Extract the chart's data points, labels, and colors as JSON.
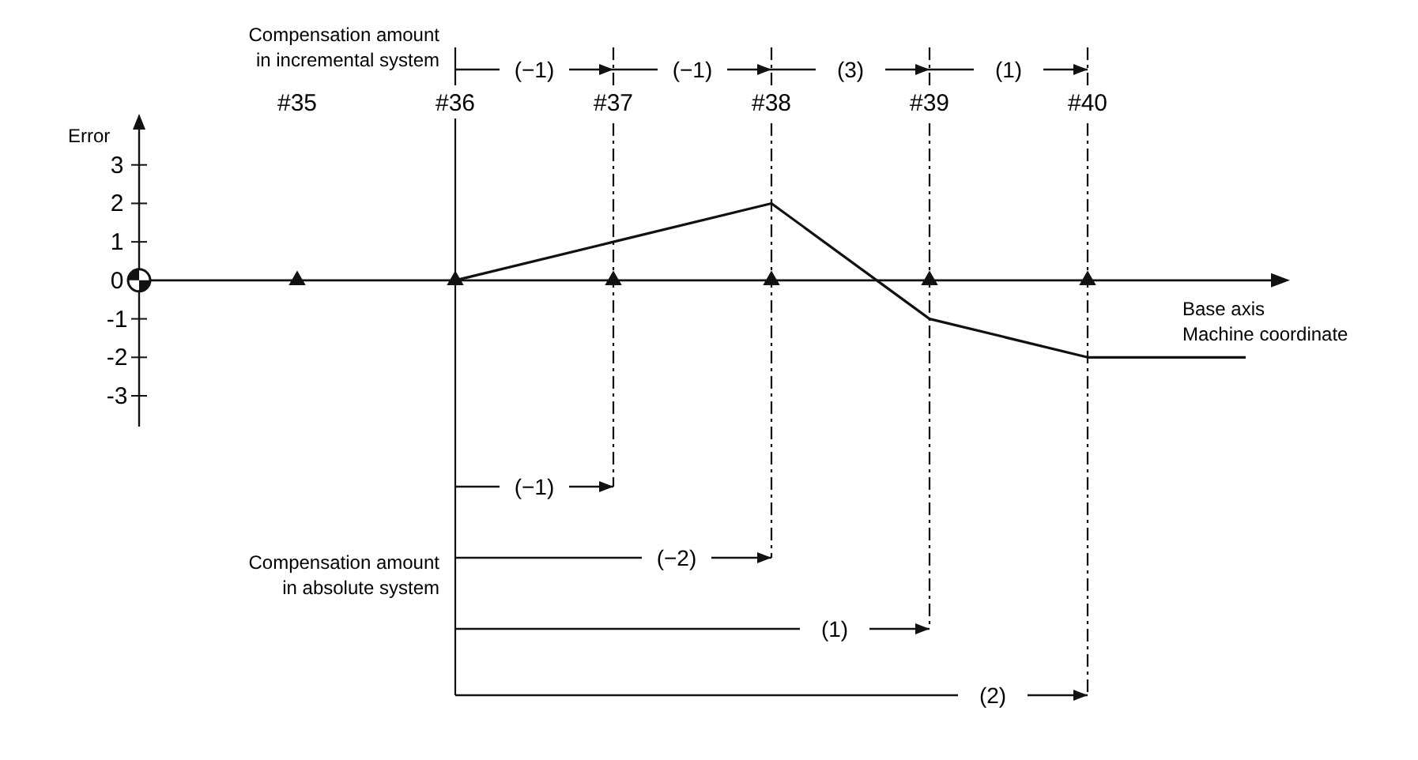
{
  "chart_data": {
    "type": "line",
    "ylabel": "Error",
    "categories": [
      null,
      "#35",
      "#36",
      "#37",
      "#38",
      "#39",
      "#40",
      null
    ],
    "series": [
      {
        "color": "#111111",
        "values": [
          null,
          null,
          0,
          1,
          2,
          -1,
          -2,
          -2
        ],
        "marker": "none",
        "line_style": "solid"
      },
      {
        "type": "scatter",
        "color": "#111111",
        "values": [
          null,
          0,
          0,
          0,
          0,
          0,
          0,
          null
        ],
        "marker": "triangle"
      }
    ],
    "ylim": [
      -3.8,
      4
    ],
    "yticks": [
      -3,
      -2,
      -1,
      0,
      1,
      2,
      3
    ],
    "ref_lines": [
      {
        "axis": "x",
        "value": "#36",
        "line_style": "solid"
      },
      {
        "axis": "x",
        "value": "#37",
        "line_style": "dashed"
      },
      {
        "axis": "x",
        "value": "#38",
        "line_style": "dashed"
      },
      {
        "axis": "x",
        "value": "#39",
        "line_style": "dashed"
      },
      {
        "axis": "x",
        "value": "#40",
        "line_style": "dashed"
      }
    ],
    "annotations": [
      "Compensation amount",
      "in incremental system",
      "(−1)",
      "(−1)",
      "(3)",
      "(1)",
      "(−1)",
      "(−2)",
      "(1)",
      "(2)",
      "Compensation amount",
      "in absolute system",
      "Base axis",
      "Machine coordinate"
    ]
  }
}
